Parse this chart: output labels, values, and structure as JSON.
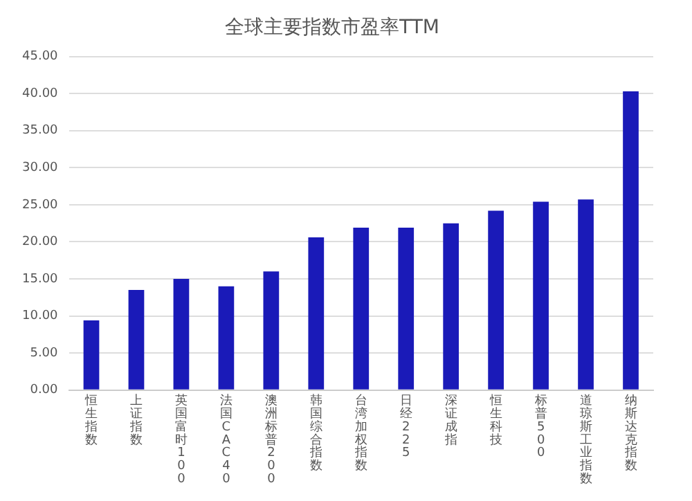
{
  "chart_data": {
    "type": "bar",
    "title": "全球主要指数市盈率TTM",
    "categories": [
      "恒生指数",
      "上证指数",
      "英国富时100",
      "法国CAC40",
      "澳洲标普200",
      "韩国综合指数",
      "台湾加权指数",
      "日经225",
      "深证成指",
      "恒生科技",
      "标普500",
      "道琼斯工业指数",
      "纳斯达克指数"
    ],
    "values": [
      9.4,
      13.5,
      15.0,
      14.0,
      16.0,
      20.6,
      21.9,
      21.9,
      22.5,
      24.2,
      25.4,
      25.7,
      40.3
    ],
    "color": "#1a1ab8",
    "ylim": [
      0,
      45
    ],
    "yticks": [
      {
        "value": 0,
        "label": "0.00"
      },
      {
        "value": 5,
        "label": "5.00"
      },
      {
        "value": 10,
        "label": "10.00"
      },
      {
        "value": 15,
        "label": "15.00"
      },
      {
        "value": 20,
        "label": "20.00"
      },
      {
        "value": 25,
        "label": "25.00"
      },
      {
        "value": 30,
        "label": "30.00"
      },
      {
        "value": 35,
        "label": "35.00"
      },
      {
        "value": 40,
        "label": "40.00"
      },
      {
        "value": 45,
        "label": "45.00"
      }
    ],
    "grid": "y",
    "legend": false
  }
}
